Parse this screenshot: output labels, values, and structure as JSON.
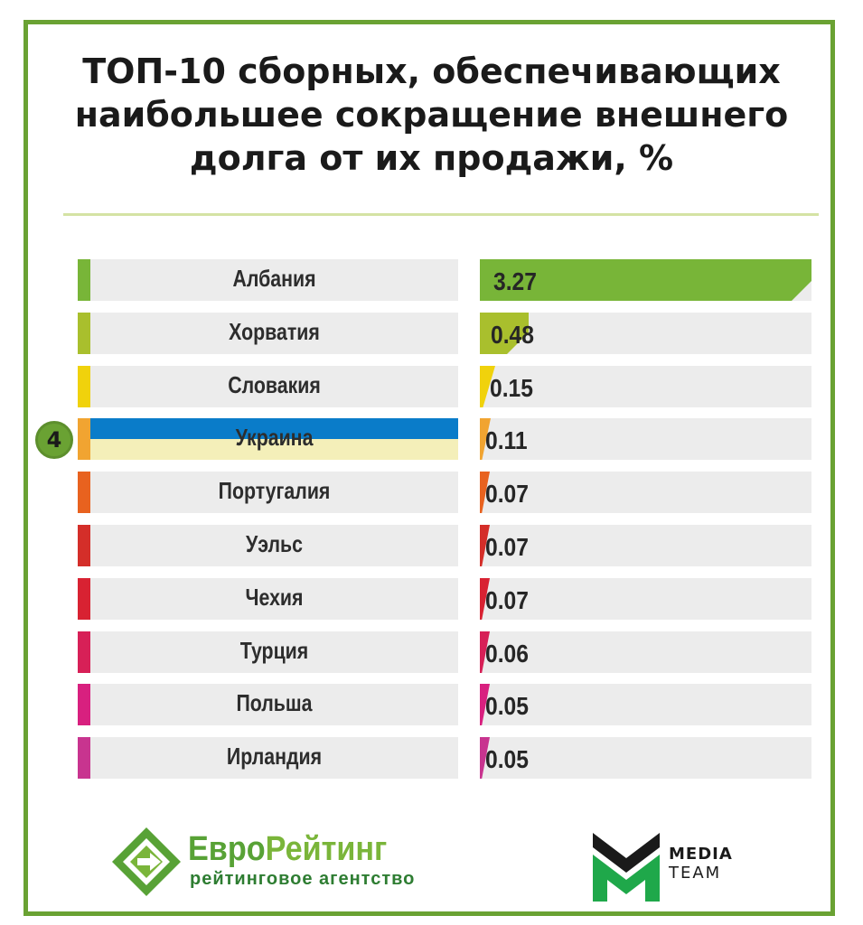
{
  "chart_data": {
    "type": "bar",
    "title": "ТОП-10 сборных, обеспечивающих наибольшее сокращение внешнего долга от их продажи, %",
    "categories": [
      "Албания",
      "Хорватия",
      "Словакия",
      "Украина",
      "Португалия",
      "Уэльс",
      "Чехия",
      "Турция",
      "Польша",
      "Ирландия"
    ],
    "values": [
      3.27,
      0.48,
      0.15,
      0.11,
      0.07,
      0.07,
      0.07,
      0.06,
      0.05,
      0.05
    ],
    "value_labels": [
      "3.27",
      "0.48",
      "0.15",
      "0.11",
      "0.07",
      "0.07",
      "0.07",
      "0.06",
      "0.05",
      "0.05"
    ],
    "colors": [
      "#78b538",
      "#a9bf2d",
      "#f0d20c",
      "#f1a431",
      "#e8621f",
      "#d42e29",
      "#d82232",
      "#d72057",
      "#d8207f",
      "#c8348f"
    ],
    "highlight": {
      "category": "Украина",
      "rank": "4",
      "colors": [
        "#0a7cc9",
        "#f4efb9"
      ]
    },
    "xlim": [
      0,
      3.27
    ]
  },
  "logos": {
    "evroreyting": {
      "name_part1": "Евро",
      "name_part2": "Рейтинг",
      "tagline": "рейтинговое агентство"
    },
    "media_team": {
      "line1": "MEDIA",
      "line2": "TEAM"
    }
  },
  "colors": {
    "frame": "#6aa233",
    "rule": "#d4e3a4",
    "row_bg": "#ececec"
  }
}
